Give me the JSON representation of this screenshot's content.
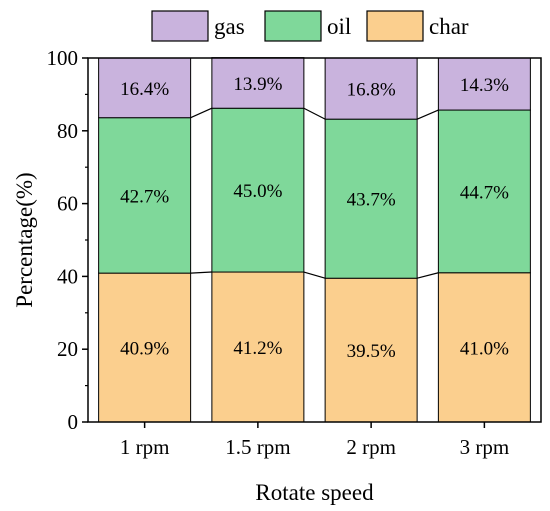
{
  "chart_data": {
    "type": "bar",
    "stacked": true,
    "percent_stacked": true,
    "categories": [
      "1 rpm",
      "1.5 rpm",
      "2 rpm",
      "3 rpm"
    ],
    "series": [
      {
        "name": "char",
        "color": "#FBCF8E",
        "values": [
          40.9,
          41.2,
          39.5,
          41.0
        ],
        "labels": [
          "40.9%",
          "41.2%",
          "39.5%",
          "41.0%"
        ]
      },
      {
        "name": "oil",
        "color": "#7FD89A",
        "values": [
          42.7,
          45.0,
          43.7,
          44.7
        ],
        "labels": [
          "42.7%",
          "45.0%",
          "43.7%",
          "44.7%"
        ]
      },
      {
        "name": "gas",
        "color": "#C9B3DD",
        "values": [
          16.4,
          13.9,
          16.8,
          14.3
        ],
        "labels": [
          "16.4%",
          "13.9%",
          "16.8%",
          "14.3%"
        ]
      }
    ],
    "legend_order": [
      "gas",
      "oil",
      "char"
    ],
    "legend_position": "top",
    "connector_lines": true,
    "xlabel": "Rotate speed",
    "ylabel": "Percentage(%)",
    "ylim": [
      0,
      100
    ],
    "yticks": [
      0,
      20,
      40,
      60,
      80,
      100
    ],
    "grid": false
  }
}
